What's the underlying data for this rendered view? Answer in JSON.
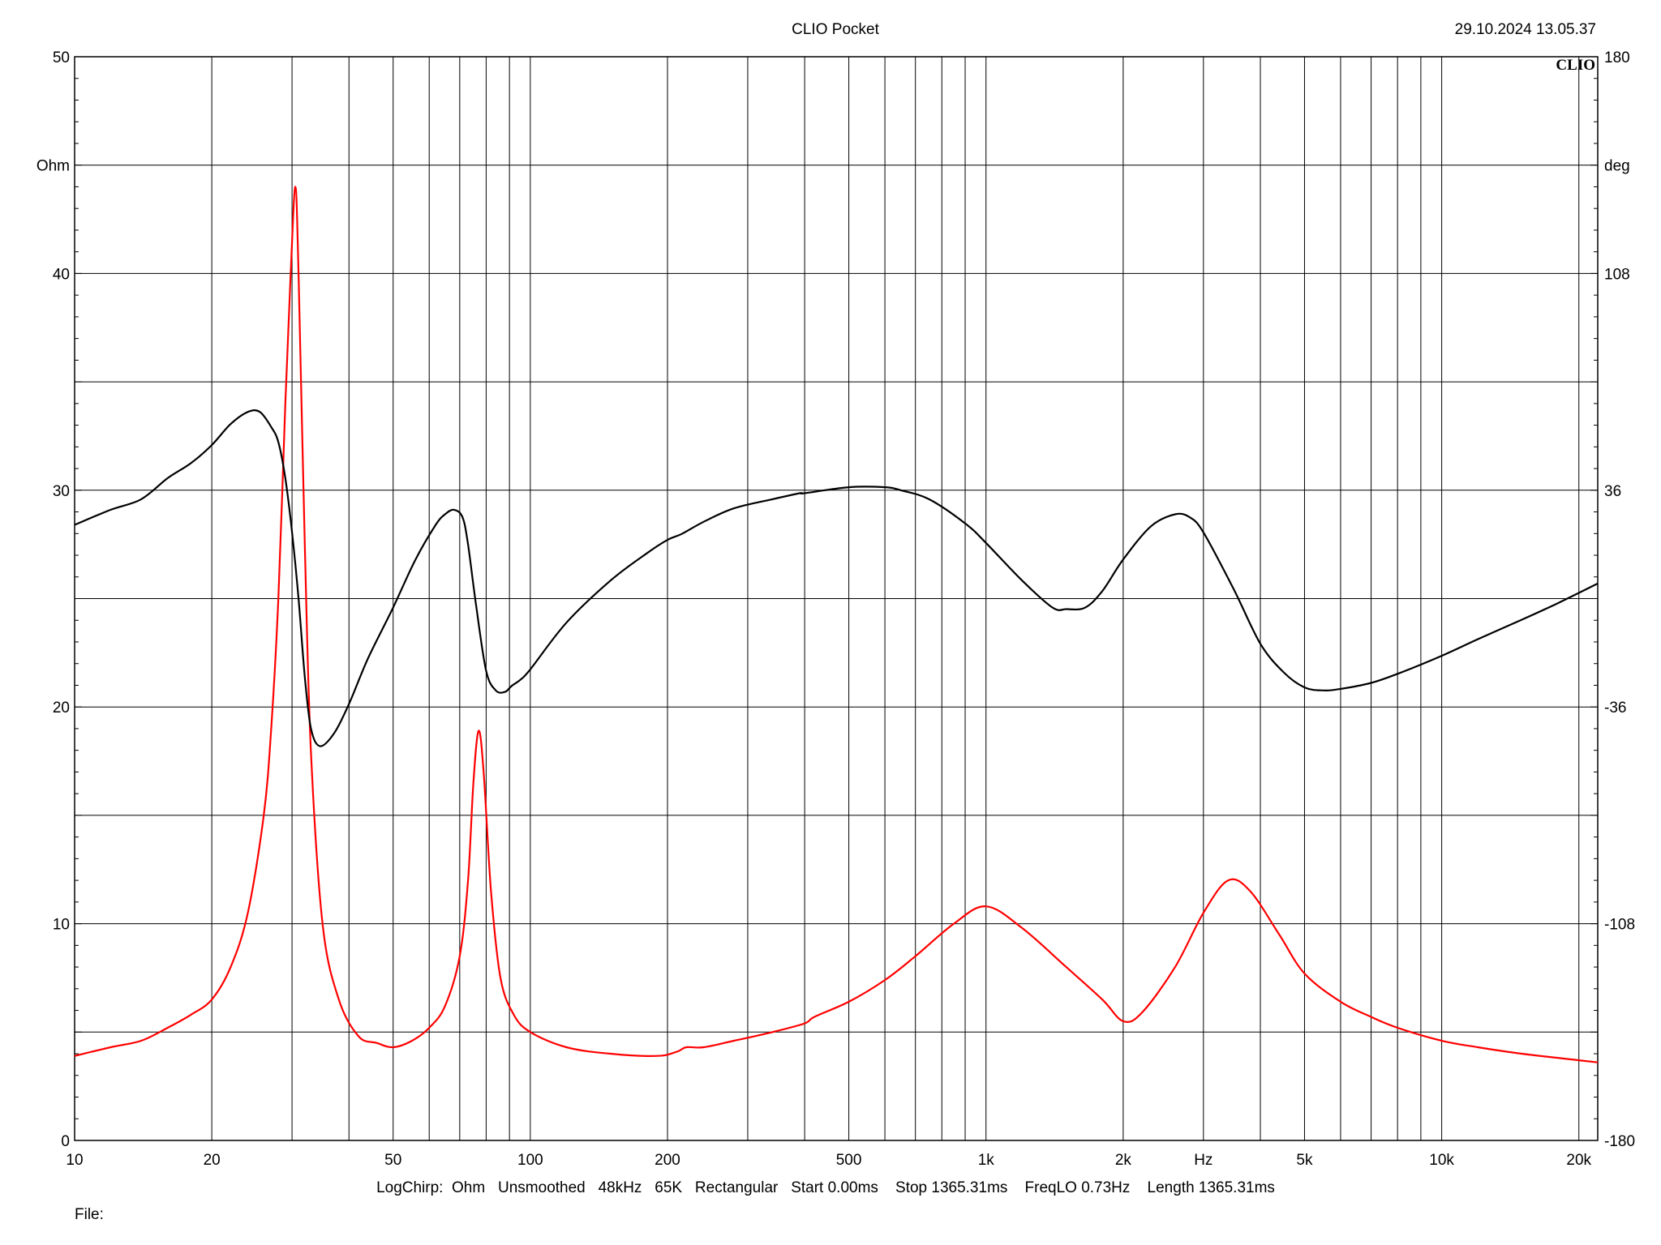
{
  "header": {
    "title": "CLIO Pocket",
    "timestamp": "29.10.2024 13.05.37",
    "logo": "CLIO"
  },
  "footer": {
    "info": "LogChirp:  Ohm   Unsmoothed   48kHz   65K   Rectangular   Start 0.00ms    Stop 1365.31ms    FreqLO 0.73Hz    Length 1365.31ms",
    "file_label": "File:"
  },
  "chart_data": {
    "type": "line",
    "title": "CLIO Pocket",
    "xlabel": "Hz",
    "ylabel": "Ohm",
    "y2label": "deg",
    "xscale": "log",
    "xlim": [
      10,
      22000
    ],
    "ylim": [
      0,
      50
    ],
    "y2lim": [
      -180,
      180
    ],
    "grid": true,
    "x_tick_labels": [
      {
        "value": 10,
        "label": "10"
      },
      {
        "value": 20,
        "label": "20"
      },
      {
        "value": 50,
        "label": "50"
      },
      {
        "value": 100,
        "label": "100"
      },
      {
        "value": 200,
        "label": "200"
      },
      {
        "value": 500,
        "label": "500"
      },
      {
        "value": 1000,
        "label": "1k"
      },
      {
        "value": 2000,
        "label": "2k"
      },
      {
        "value": 5000,
        "label": "5k"
      },
      {
        "value": 10000,
        "label": "10k"
      },
      {
        "value": 20000,
        "label": "20k"
      }
    ],
    "y_tick_labels": [
      "0",
      "10",
      "20",
      "30",
      "40",
      "50"
    ],
    "y2_tick_labels": [
      "-180",
      "-108",
      "-36",
      "36",
      "108",
      "180"
    ],
    "series": [
      {
        "axis": "left",
        "color": "#ff0000",
        "x": [
          10,
          12,
          14,
          16,
          18,
          20,
          22,
          24,
          26,
          27,
          28,
          29,
          29.8,
          30.5,
          31,
          32,
          33,
          35,
          38,
          42,
          46,
          50,
          55,
          60,
          65,
          70,
          73,
          75,
          77,
          79,
          82,
          86,
          92,
          100,
          120,
          150,
          190,
          210,
          220,
          240,
          280,
          340,
          400,
          420,
          500,
          600,
          700,
          850,
          1000,
          1200,
          1500,
          1800,
          2000,
          2200,
          2600,
          3000,
          3400,
          3800,
          4400,
          5000,
          6000,
          7000,
          8000,
          10000,
          12000,
          15000,
          20000,
          22000
        ],
        "y": [
          3.9,
          4.3,
          4.6,
          5.2,
          5.8,
          6.5,
          8.0,
          10.5,
          15.0,
          19.0,
          25.0,
          34.0,
          40.0,
          44.0,
          40.0,
          27.5,
          18.0,
          10.0,
          6.5,
          4.8,
          4.5,
          4.3,
          4.6,
          5.2,
          6.2,
          8.5,
          12.0,
          16.5,
          18.9,
          17.0,
          11.5,
          7.5,
          5.8,
          5.0,
          4.3,
          4.0,
          3.9,
          4.1,
          4.3,
          4.3,
          4.6,
          5.0,
          5.4,
          5.7,
          6.4,
          7.4,
          8.5,
          10.0,
          10.8,
          9.8,
          8.0,
          6.5,
          5.5,
          5.9,
          8.0,
          10.5,
          12.0,
          11.5,
          9.5,
          7.7,
          6.4,
          5.7,
          5.2,
          4.6,
          4.3,
          4.0,
          3.7,
          3.6
        ]
      },
      {
        "axis": "right",
        "color": "#000000",
        "x": [
          10,
          12,
          14,
          16,
          18,
          20,
          22,
          24,
          25.5,
          27,
          28,
          29,
          30,
          31,
          32,
          33,
          34.5,
          37,
          40,
          44,
          50,
          56,
          62,
          65,
          68,
          71,
          73,
          76,
          80,
          84,
          88,
          91,
          95,
          100,
          120,
          150,
          180,
          200,
          215,
          240,
          280,
          340,
          390,
          400,
          500,
          600,
          650,
          750,
          900,
          1000,
          1200,
          1400,
          1500,
          1650,
          1800,
          2000,
          2300,
          2600,
          2800,
          3000,
          3500,
          4000,
          4500,
          5000,
          5500,
          6000,
          7000,
          8000,
          10000,
          12000,
          15000,
          18000,
          22000
        ],
        "y": [
          24.5,
          29.5,
          33.0,
          40.0,
          45.0,
          51.0,
          58.0,
          62.0,
          62.0,
          57.0,
          52.0,
          40.0,
          22.0,
          0.0,
          -26.0,
          -43.0,
          -49.0,
          -45.0,
          -35.0,
          -20.0,
          -3.0,
          13.0,
          24.5,
          28.0,
          29.5,
          27.0,
          18.0,
          -2.0,
          -24.0,
          -30.5,
          -31.0,
          -29.0,
          -27.0,
          -23.5,
          -8.0,
          6.0,
          15.0,
          19.5,
          21.5,
          25.5,
          30.0,
          33.0,
          35.0,
          35.0,
          37.0,
          37.0,
          36.0,
          33.0,
          25.0,
          18.5,
          6.0,
          -3.0,
          -3.5,
          -3.0,
          2.5,
          13.0,
          24.0,
          28.0,
          27.0,
          22.0,
          3.0,
          -15.0,
          -24.5,
          -29.5,
          -30.5,
          -30.0,
          -28.0,
          -25.0,
          -19.0,
          -13.5,
          -7.0,
          -1.5,
          5.0
        ]
      }
    ]
  }
}
